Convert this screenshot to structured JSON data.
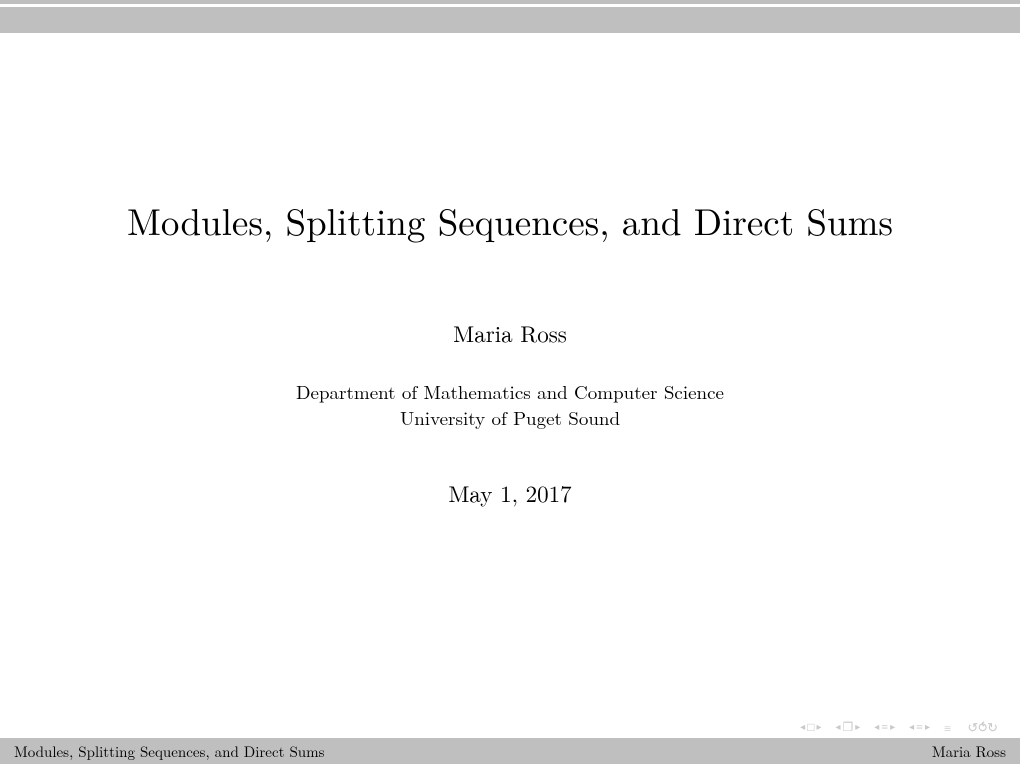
{
  "colors": {
    "background": "#ffffff",
    "text": "#000000",
    "bar": "#bfbfbf",
    "nav_icon": "#c9c9c9"
  },
  "slide": {
    "title": "Modules, Splitting Sequences, and Direct Sums",
    "author": "Maria Ross",
    "affiliation_line1": "Department of Mathematics and Computer Science",
    "affiliation_line2": "University of Puget Sound",
    "date": "May 1, 2017"
  },
  "footer": {
    "left": "Modules, Splitting Sequences, and Direct Sums",
    "right": "Maria Ross"
  },
  "nav": {
    "frame_glyph": "□",
    "subframe_glyph": "❐",
    "section_glyph": "≡",
    "subsection_glyph": "≡",
    "mode_glyph": "≡",
    "back_glyph": "↺⥀↻",
    "left_tri": "◂",
    "right_tri": "▸"
  }
}
